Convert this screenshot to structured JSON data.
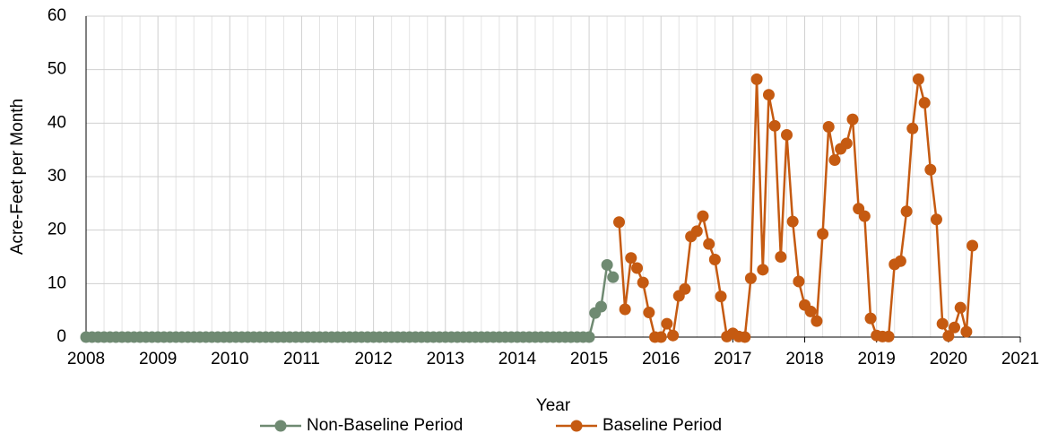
{
  "chart_data": {
    "type": "line",
    "x_label": "Year",
    "y_label": "Acre-Feet per Month",
    "xlim": [
      2008,
      2021
    ],
    "ylim": [
      0,
      60
    ],
    "xticks": [
      2008,
      2009,
      2010,
      2011,
      2012,
      2013,
      2014,
      2015,
      2016,
      2017,
      2018,
      2019,
      2020,
      2021
    ],
    "yticks": [
      0,
      10,
      20,
      30,
      40,
      50,
      60
    ],
    "grid": true,
    "x_minor_divisions": 4,
    "legend": "bottom",
    "series": [
      {
        "name": "Non-Baseline Period",
        "color": "#6f8a72",
        "x": [
          2008,
          2008.083,
          2008.167,
          2008.25,
          2008.333,
          2008.417,
          2008.5,
          2008.583,
          2008.667,
          2008.75,
          2008.833,
          2008.917,
          2009,
          2009.083,
          2009.167,
          2009.25,
          2009.333,
          2009.417,
          2009.5,
          2009.583,
          2009.667,
          2009.75,
          2009.833,
          2009.917,
          2010,
          2010.083,
          2010.167,
          2010.25,
          2010.333,
          2010.417,
          2010.5,
          2010.583,
          2010.667,
          2010.75,
          2010.833,
          2010.917,
          2011,
          2011.083,
          2011.167,
          2011.25,
          2011.333,
          2011.417,
          2011.5,
          2011.583,
          2011.667,
          2011.75,
          2011.833,
          2011.917,
          2012,
          2012.083,
          2012.167,
          2012.25,
          2012.333,
          2012.417,
          2012.5,
          2012.583,
          2012.667,
          2012.75,
          2012.833,
          2012.917,
          2013,
          2013.083,
          2013.167,
          2013.25,
          2013.333,
          2013.417,
          2013.5,
          2013.583,
          2013.667,
          2013.75,
          2013.833,
          2013.917,
          2014,
          2014.083,
          2014.167,
          2014.25,
          2014.333,
          2014.417,
          2014.5,
          2014.583,
          2014.667,
          2014.75,
          2014.833,
          2014.917,
          2015,
          2015.083,
          2015.167,
          2015.25,
          2015.333
        ],
        "values": [
          0,
          0,
          0,
          0,
          0,
          0,
          0,
          0,
          0,
          0,
          0,
          0,
          0,
          0,
          0,
          0,
          0,
          0,
          0,
          0,
          0,
          0,
          0,
          0,
          0,
          0,
          0,
          0,
          0,
          0,
          0,
          0,
          0,
          0,
          0,
          0,
          0,
          0,
          0,
          0,
          0,
          0,
          0,
          0,
          0,
          0,
          0,
          0,
          0,
          0,
          0,
          0,
          0,
          0,
          0,
          0,
          0,
          0,
          0,
          0,
          0,
          0,
          0,
          0,
          0,
          0,
          0,
          0,
          0,
          0,
          0,
          0,
          0,
          0,
          0,
          0,
          0,
          0,
          0,
          0,
          0,
          0,
          0,
          0,
          0,
          4.5,
          5.7,
          13.5,
          11.2
        ]
      },
      {
        "name": "Baseline Period",
        "color": "#c55a11",
        "x": [
          2015.417,
          2015.5,
          2015.583,
          2015.667,
          2015.75,
          2015.833,
          2015.917,
          2016,
          2016.083,
          2016.167,
          2016.25,
          2016.333,
          2016.417,
          2016.5,
          2016.583,
          2016.667,
          2016.75,
          2016.833,
          2016.917,
          2017,
          2017.083,
          2017.167,
          2017.25,
          2017.333,
          2017.417,
          2017.5,
          2017.583,
          2017.667,
          2017.75,
          2017.833,
          2017.917,
          2018,
          2018.083,
          2018.167,
          2018.25,
          2018.333,
          2018.417,
          2018.5,
          2018.583,
          2018.667,
          2018.75,
          2018.833,
          2018.917,
          2019,
          2019.083,
          2019.167,
          2019.25,
          2019.333,
          2019.417,
          2019.5,
          2019.583,
          2019.667,
          2019.75,
          2019.833,
          2019.917,
          2020,
          2020.083,
          2020.167,
          2020.25,
          2020.333
        ],
        "values": [
          21.5,
          5.2,
          14.8,
          12.9,
          10.2,
          4.6,
          0,
          0,
          2.5,
          0.3,
          7.7,
          9.0,
          18.8,
          19.8,
          22.6,
          17.4,
          14.5,
          7.6,
          0.1,
          0.7,
          0.1,
          0,
          11.0,
          48.2,
          12.6,
          45.3,
          39.5,
          15.0,
          37.8,
          21.6,
          10.4,
          6.0,
          4.8,
          3.0,
          19.3,
          39.3,
          33.1,
          35.2,
          36.2,
          40.7,
          24.0,
          22.6,
          3.5,
          0.3,
          0.1,
          0.1,
          13.6,
          14.2,
          23.5,
          39.0,
          48.2,
          43.8,
          31.3,
          22.0,
          2.5,
          0.2,
          1.8,
          5.5,
          1.0,
          17.1
        ]
      }
    ]
  }
}
